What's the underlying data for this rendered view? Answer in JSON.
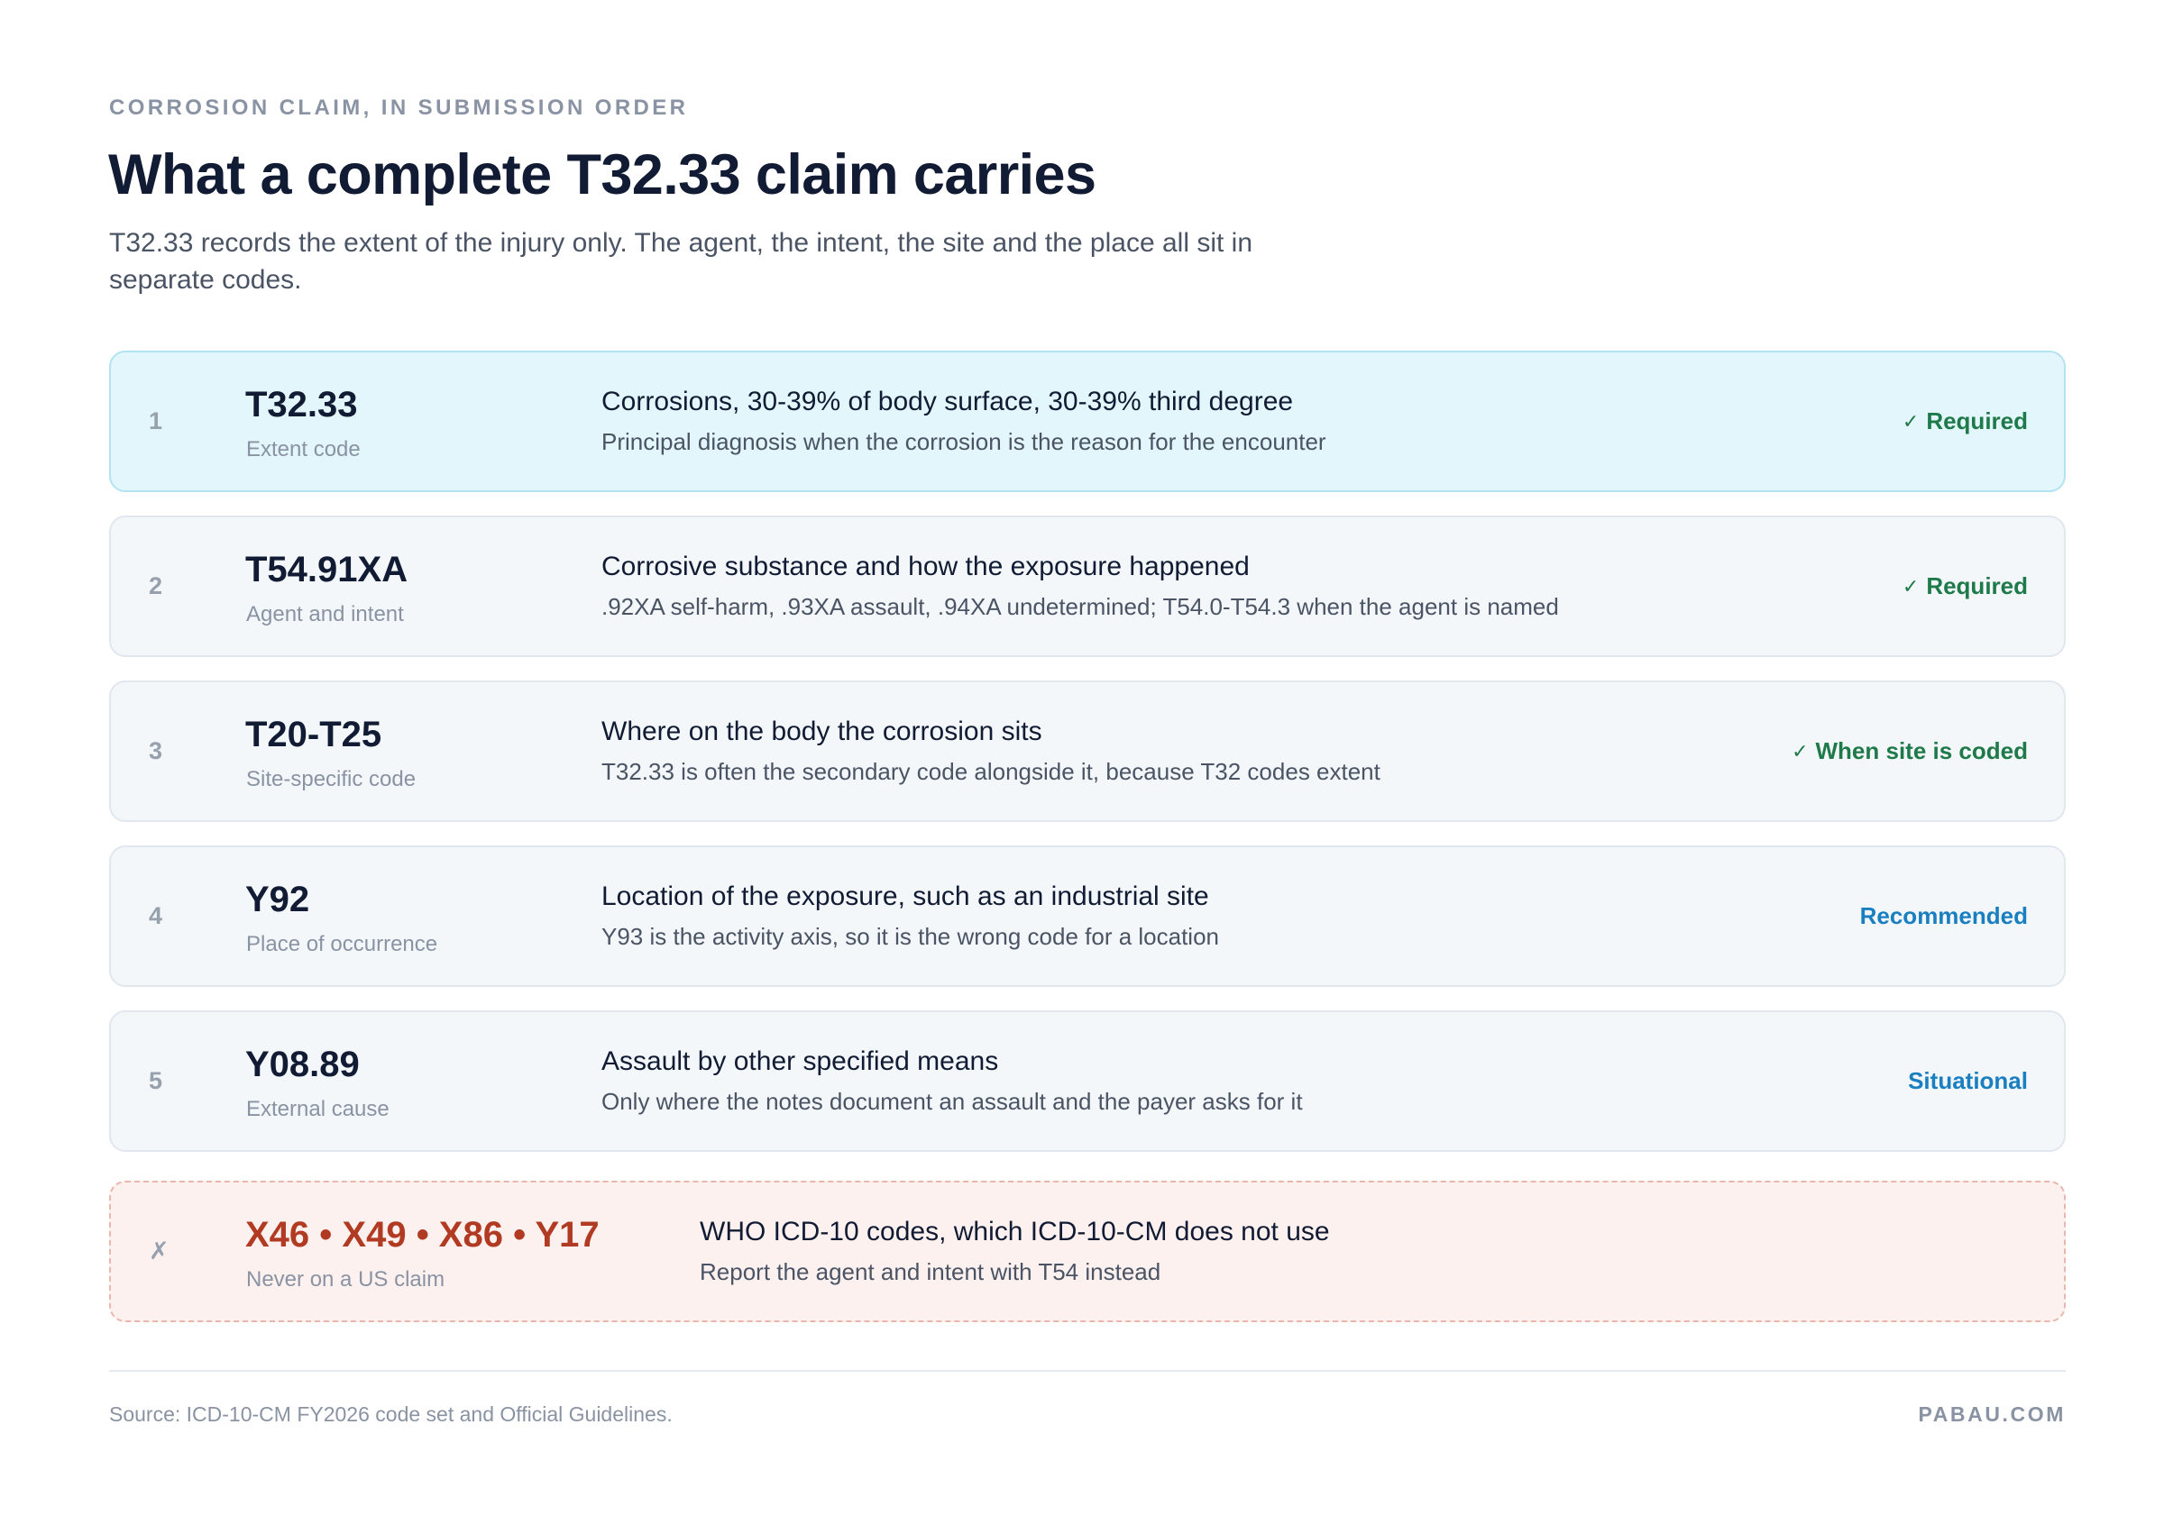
{
  "header": {
    "eyebrow": "CORROSION CLAIM, IN SUBMISSION ORDER",
    "title": "What a complete T32.33 claim carries",
    "subtitle": "T32.33 records the extent of the injury only. The agent, the intent, the site and the place all sit in separate codes."
  },
  "colors": {
    "highlight_bg": "#e3f6fb",
    "row_bg": "#f4f7fa",
    "warn_bg": "#fdf1ef",
    "warn_text": "#b13a22",
    "status_green": "#1f7a4a",
    "status_blue": "#1a7fc0"
  },
  "rows": [
    {
      "num": "1",
      "code": "T32.33",
      "code_label": "Extent code",
      "description": "Corrosions, 30-39% of body surface, 30-39% third degree",
      "detail": "Principal diagnosis when the corrosion is the reason for the encounter",
      "status_icon": "✓",
      "status": "Required"
    },
    {
      "num": "2",
      "code": "T54.91XA",
      "code_label": "Agent and intent",
      "description": "Corrosive substance and how the exposure happened",
      "detail": ".92XA self-harm, .93XA assault, .94XA undetermined; T54.0-T54.3 when the agent is named",
      "status_icon": "✓",
      "status": "Required"
    },
    {
      "num": "3",
      "code": "T20-T25",
      "code_label": "Site-specific code",
      "description": "Where on the body the corrosion sits",
      "detail": "T32.33 is often the secondary code alongside it, because T32 codes extent",
      "status_icon": "✓",
      "status": "When site is coded"
    },
    {
      "num": "4",
      "code": "Y92",
      "code_label": "Place of occurrence",
      "description": "Location of the exposure, such as an industrial site",
      "detail": "Y93 is the activity axis, so it is the wrong code for a location",
      "status": "Recommended"
    },
    {
      "num": "5",
      "code": "Y08.89",
      "code_label": "External cause",
      "description": "Assault by other specified means",
      "detail": "Only where the notes document an assault and the payer asks for it",
      "status": "Situational"
    }
  ],
  "excluded": {
    "mark": "✗",
    "codes": "X46 • X49 • X86 • Y17",
    "code_label": "Never on a US claim",
    "description": "WHO ICD-10 codes, which ICD-10-CM does not use",
    "detail": "Report the agent and intent with T54 instead"
  },
  "footer": {
    "source": "Source: ICD-10-CM FY2026 code set and Official Guidelines.",
    "brand": "PABAU.COM"
  }
}
